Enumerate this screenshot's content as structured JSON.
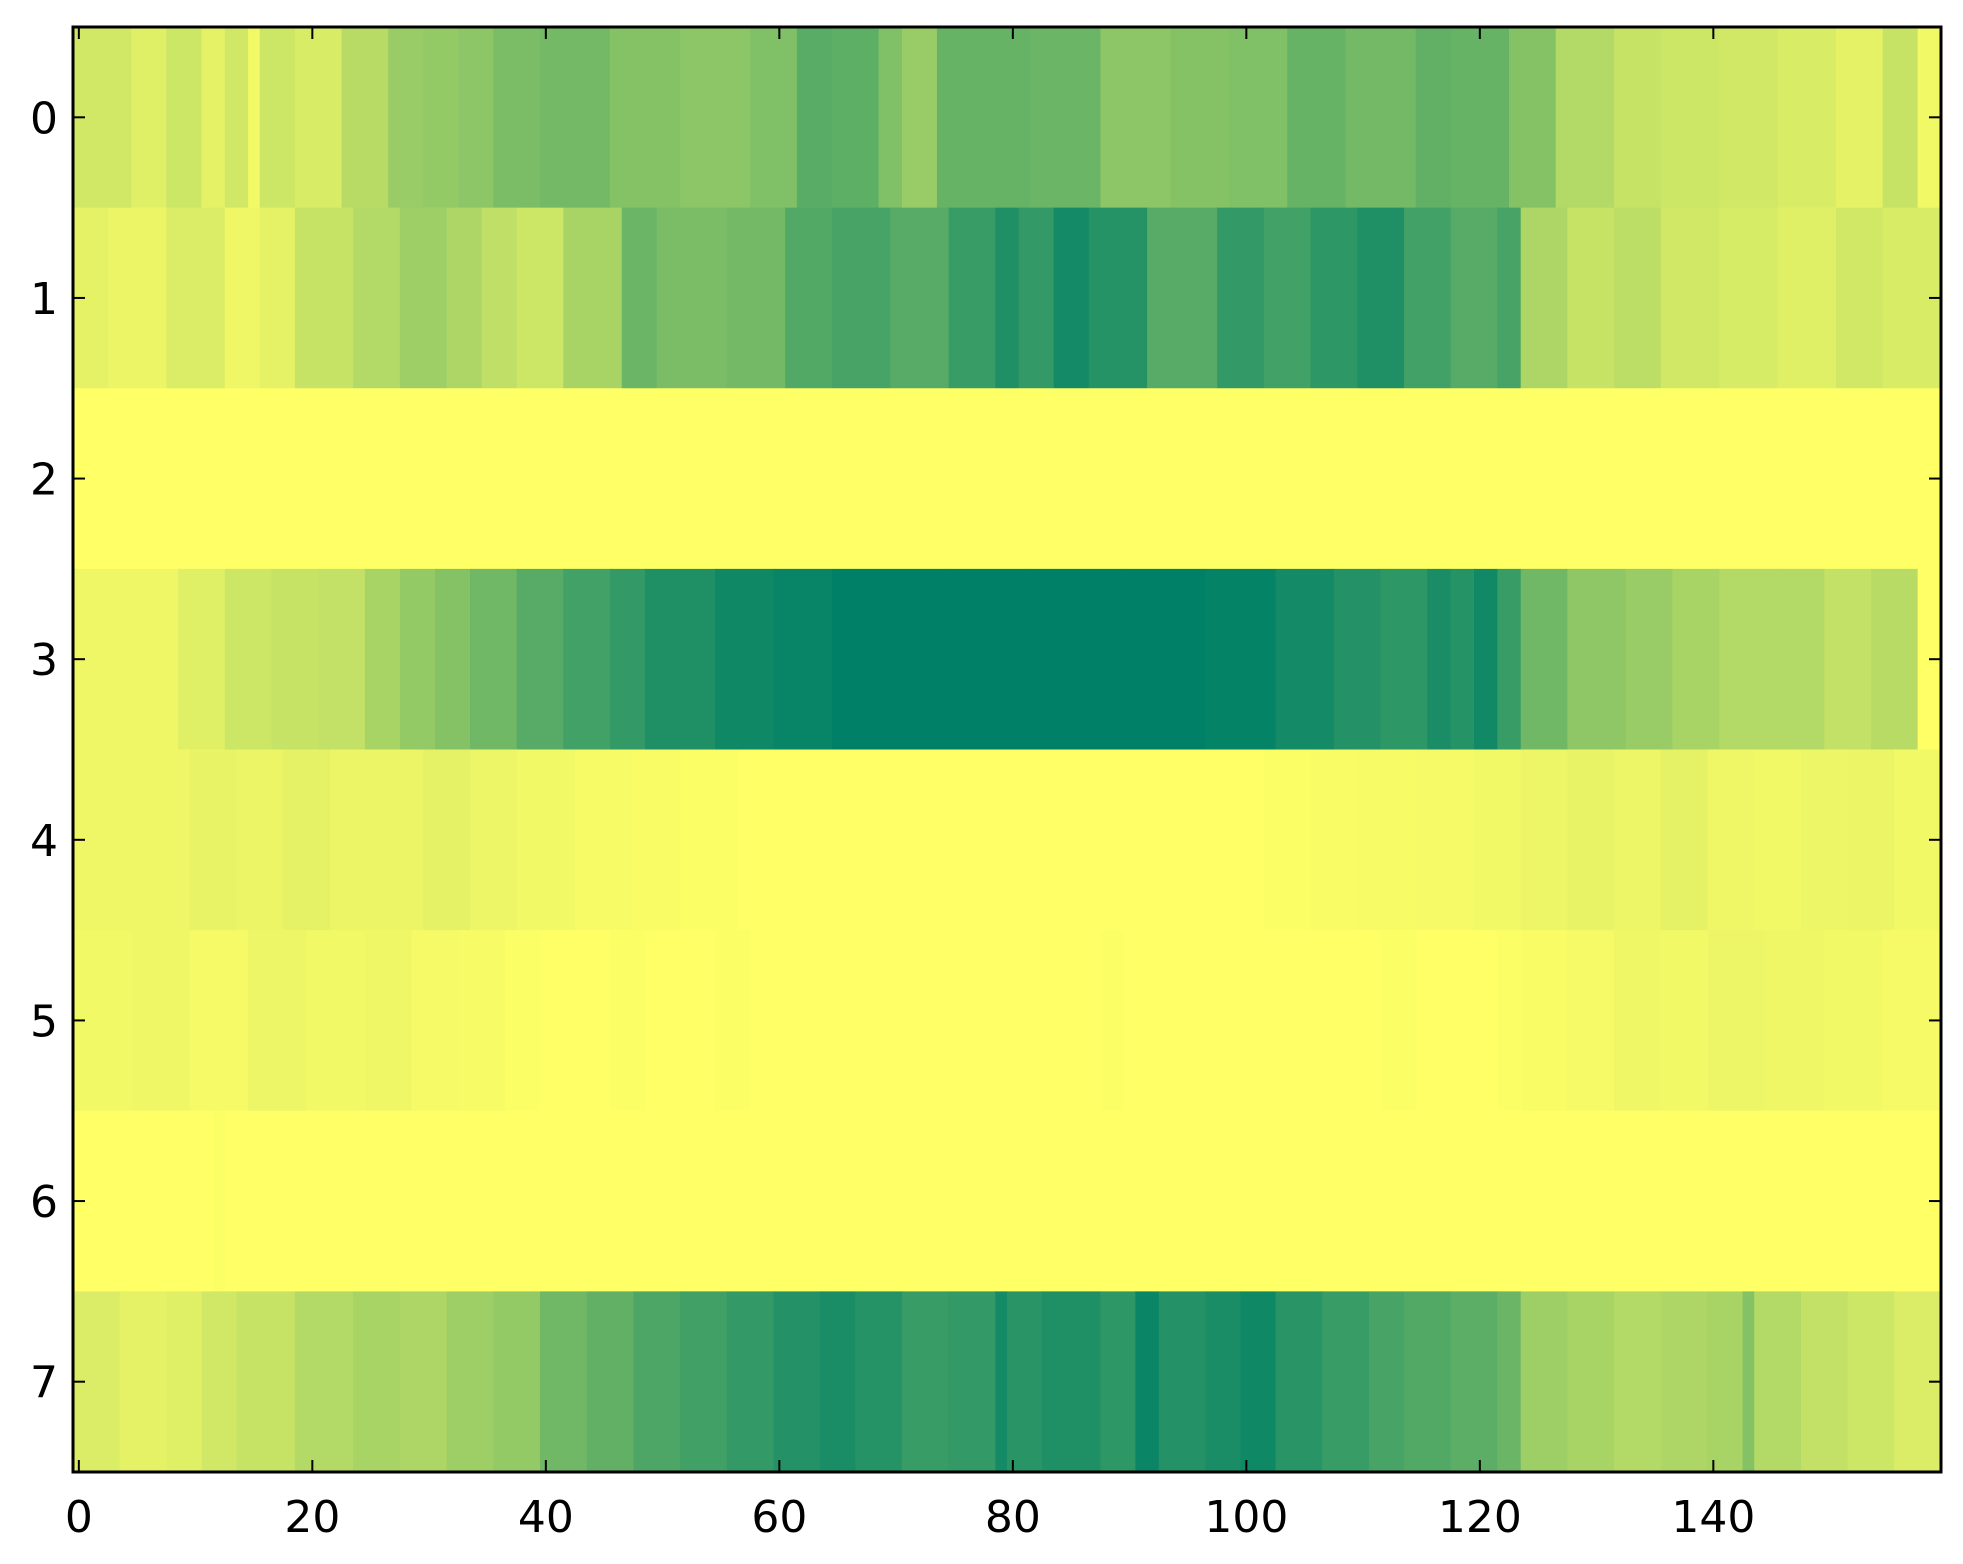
{
  "chart_data": {
    "type": "heatmap",
    "title": "",
    "xlabel": "",
    "ylabel": "",
    "colormap": "summer_r",
    "color_low": "#ffff66",
    "color_high": "#008066",
    "value_range": [
      0,
      1
    ],
    "n_cols": 160,
    "xlim": [
      -0.5,
      159.5
    ],
    "ylim": [
      7.5,
      -0.5
    ],
    "x_ticks": [
      0,
      20,
      40,
      60,
      80,
      100,
      120,
      140
    ],
    "x_tick_labels": [
      "0",
      "20",
      "40",
      "60",
      "80",
      "100",
      "120",
      "140"
    ],
    "y_ticks": [
      0,
      1,
      2,
      3,
      4,
      5,
      6,
      7
    ],
    "y_tick_labels": [
      "0",
      "1",
      "2",
      "3",
      "4",
      "5",
      "6",
      "7"
    ],
    "grid": false,
    "rows": [
      {
        "row": 0,
        "segments": [
          [
            0,
            0.18
          ],
          [
            5,
            0.12
          ],
          [
            8,
            0.2
          ],
          [
            11,
            0.1
          ],
          [
            13,
            0.18
          ],
          [
            15,
            0.05
          ],
          [
            16,
            0.2
          ],
          [
            19,
            0.15
          ],
          [
            23,
            0.28
          ],
          [
            27,
            0.4
          ],
          [
            30,
            0.42
          ],
          [
            33,
            0.45
          ],
          [
            36,
            0.52
          ],
          [
            40,
            0.55
          ],
          [
            46,
            0.48
          ],
          [
            52,
            0.45
          ],
          [
            58,
            0.5
          ],
          [
            62,
            0.65
          ],
          [
            65,
            0.63
          ],
          [
            69,
            0.5
          ],
          [
            71,
            0.4
          ],
          [
            74,
            0.6
          ],
          [
            82,
            0.58
          ],
          [
            88,
            0.45
          ],
          [
            94,
            0.48
          ],
          [
            99,
            0.5
          ],
          [
            104,
            0.6
          ],
          [
            109,
            0.55
          ],
          [
            115,
            0.62
          ],
          [
            118,
            0.6
          ],
          [
            123,
            0.48
          ],
          [
            127,
            0.3
          ],
          [
            132,
            0.22
          ],
          [
            136,
            0.2
          ],
          [
            141,
            0.18
          ],
          [
            146,
            0.15
          ],
          [
            151,
            0.1
          ],
          [
            155,
            0.22
          ],
          [
            158,
            0.05
          ]
        ]
      },
      {
        "row": 1,
        "segments": [
          [
            0,
            0.1
          ],
          [
            3,
            0.08
          ],
          [
            8,
            0.14
          ],
          [
            13,
            0.06
          ],
          [
            16,
            0.1
          ],
          [
            19,
            0.22
          ],
          [
            24,
            0.3
          ],
          [
            28,
            0.38
          ],
          [
            32,
            0.32
          ],
          [
            35,
            0.25
          ],
          [
            38,
            0.2
          ],
          [
            42,
            0.34
          ],
          [
            47,
            0.58
          ],
          [
            50,
            0.52
          ],
          [
            56,
            0.55
          ],
          [
            61,
            0.68
          ],
          [
            65,
            0.72
          ],
          [
            70,
            0.66
          ],
          [
            75,
            0.78
          ],
          [
            79,
            0.88
          ],
          [
            81,
            0.8
          ],
          [
            84,
            0.92
          ],
          [
            87,
            0.85
          ],
          [
            92,
            0.66
          ],
          [
            98,
            0.8
          ],
          [
            102,
            0.74
          ],
          [
            106,
            0.82
          ],
          [
            110,
            0.88
          ],
          [
            114,
            0.74
          ],
          [
            118,
            0.66
          ],
          [
            122,
            0.72
          ],
          [
            124,
            0.32
          ],
          [
            128,
            0.22
          ],
          [
            132,
            0.26
          ],
          [
            136,
            0.18
          ],
          [
            141,
            0.16
          ],
          [
            146,
            0.12
          ],
          [
            151,
            0.18
          ],
          [
            155,
            0.15
          ]
        ]
      },
      {
        "row": 2,
        "segments": [
          [
            0,
            0.0
          ]
        ]
      },
      {
        "row": 3,
        "segments": [
          [
            0,
            0.06
          ],
          [
            9,
            0.12
          ],
          [
            13,
            0.2
          ],
          [
            17,
            0.22
          ],
          [
            21,
            0.24
          ],
          [
            25,
            0.34
          ],
          [
            28,
            0.42
          ],
          [
            31,
            0.48
          ],
          [
            34,
            0.56
          ],
          [
            38,
            0.66
          ],
          [
            42,
            0.74
          ],
          [
            46,
            0.8
          ],
          [
            49,
            0.88
          ],
          [
            55,
            0.94
          ],
          [
            60,
            0.97
          ],
          [
            65,
            1.0
          ],
          [
            75,
            1.0
          ],
          [
            82,
            1.0
          ],
          [
            90,
            1.0
          ],
          [
            97,
            0.98
          ],
          [
            103,
            0.92
          ],
          [
            108,
            0.86
          ],
          [
            112,
            0.82
          ],
          [
            116,
            0.9
          ],
          [
            118,
            0.85
          ],
          [
            120,
            0.93
          ],
          [
            122,
            0.78
          ],
          [
            124,
            0.56
          ],
          [
            128,
            0.44
          ],
          [
            133,
            0.4
          ],
          [
            137,
            0.34
          ],
          [
            141,
            0.3
          ],
          [
            146,
            0.3
          ],
          [
            150,
            0.24
          ],
          [
            154,
            0.28
          ],
          [
            158,
            0.0
          ]
        ]
      },
      {
        "row": 4,
        "segments": [
          [
            0,
            0.06
          ],
          [
            10,
            0.09
          ],
          [
            14,
            0.08
          ],
          [
            18,
            0.1
          ],
          [
            22,
            0.08
          ],
          [
            26,
            0.08
          ],
          [
            30,
            0.1
          ],
          [
            34,
            0.07
          ],
          [
            38,
            0.05
          ],
          [
            43,
            0.03
          ],
          [
            48,
            0.02
          ],
          [
            52,
            0.01
          ],
          [
            57,
            0.0
          ],
          [
            64,
            0.0
          ],
          [
            80,
            0.0
          ],
          [
            95,
            0.0
          ],
          [
            102,
            0.01
          ],
          [
            106,
            0.02
          ],
          [
            110,
            0.03
          ],
          [
            115,
            0.04
          ],
          [
            120,
            0.05
          ],
          [
            124,
            0.07
          ],
          [
            128,
            0.09
          ],
          [
            132,
            0.07
          ],
          [
            136,
            0.1
          ],
          [
            140,
            0.06
          ],
          [
            144,
            0.05
          ],
          [
            148,
            0.07
          ],
          [
            152,
            0.08
          ],
          [
            156,
            0.05
          ]
        ]
      },
      {
        "row": 5,
        "segments": [
          [
            0,
            0.05
          ],
          [
            5,
            0.06
          ],
          [
            10,
            0.04
          ],
          [
            15,
            0.07
          ],
          [
            20,
            0.05
          ],
          [
            25,
            0.06
          ],
          [
            29,
            0.04
          ],
          [
            33,
            0.03
          ],
          [
            37,
            0.01
          ],
          [
            40,
            0.0
          ],
          [
            46,
            0.01
          ],
          [
            49,
            0.0
          ],
          [
            55,
            0.01
          ],
          [
            58,
            0.0
          ],
          [
            70,
            0.0
          ],
          [
            88,
            0.01
          ],
          [
            90,
            0.0
          ],
          [
            100,
            0.0
          ],
          [
            112,
            0.01
          ],
          [
            115,
            0.0
          ],
          [
            122,
            0.01
          ],
          [
            124,
            0.02
          ],
          [
            128,
            0.04
          ],
          [
            132,
            0.06
          ],
          [
            136,
            0.05
          ],
          [
            140,
            0.07
          ],
          [
            145,
            0.06
          ],
          [
            150,
            0.05
          ],
          [
            155,
            0.04
          ]
        ]
      },
      {
        "row": 6,
        "segments": [
          [
            0,
            0.0
          ],
          [
            12,
            0.01
          ],
          [
            13,
            0.0
          ],
          [
            40,
            0.0
          ],
          [
            80,
            0.0
          ],
          [
            120,
            0.0
          ],
          [
            155,
            0.0
          ]
        ]
      },
      {
        "row": 7,
        "segments": [
          [
            0,
            0.14
          ],
          [
            4,
            0.1
          ],
          [
            8,
            0.12
          ],
          [
            11,
            0.18
          ],
          [
            14,
            0.22
          ],
          [
            19,
            0.3
          ],
          [
            24,
            0.34
          ],
          [
            28,
            0.32
          ],
          [
            32,
            0.38
          ],
          [
            36,
            0.42
          ],
          [
            40,
            0.56
          ],
          [
            44,
            0.62
          ],
          [
            48,
            0.7
          ],
          [
            52,
            0.75
          ],
          [
            56,
            0.8
          ],
          [
            60,
            0.86
          ],
          [
            64,
            0.9
          ],
          [
            67,
            0.85
          ],
          [
            71,
            0.78
          ],
          [
            75,
            0.8
          ],
          [
            79,
            0.92
          ],
          [
            80,
            0.84
          ],
          [
            83,
            0.88
          ],
          [
            88,
            0.82
          ],
          [
            91,
            0.96
          ],
          [
            93,
            0.86
          ],
          [
            97,
            0.9
          ],
          [
            100,
            0.94
          ],
          [
            103,
            0.84
          ],
          [
            107,
            0.78
          ],
          [
            111,
            0.72
          ],
          [
            114,
            0.68
          ],
          [
            118,
            0.64
          ],
          [
            122,
            0.58
          ],
          [
            124,
            0.38
          ],
          [
            128,
            0.34
          ],
          [
            132,
            0.3
          ],
          [
            136,
            0.32
          ],
          [
            140,
            0.34
          ],
          [
            143,
            0.48
          ],
          [
            144,
            0.3
          ],
          [
            148,
            0.24
          ],
          [
            152,
            0.2
          ],
          [
            156,
            0.14
          ]
        ]
      }
    ]
  }
}
